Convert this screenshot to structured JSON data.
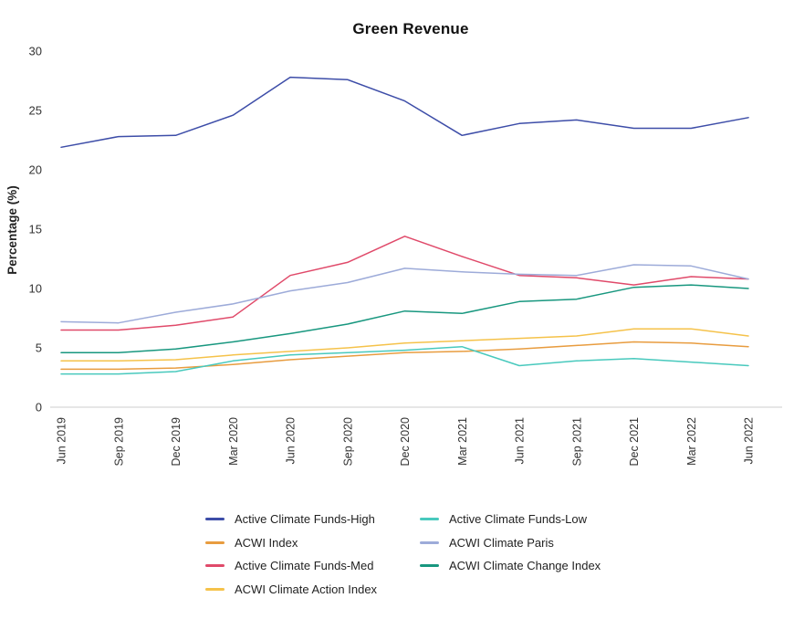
{
  "title": "Green Revenue",
  "y_axis": {
    "label": "Percentage (%)",
    "ticks": [
      0,
      5,
      10,
      15,
      20,
      25,
      30
    ]
  },
  "chart_data": {
    "type": "line",
    "title": "Green Revenue",
    "xlabel": "",
    "ylabel": "Percentage (%)",
    "ylim": [
      0,
      30
    ],
    "grid": false,
    "legend_position": "bottom",
    "categories": [
      "Jun 2019",
      "Sep 2019",
      "Dec 2019",
      "Mar 2020",
      "Jun 2020",
      "Sep 2020",
      "Dec 2020",
      "Mar 2021",
      "Jun 2021",
      "Sep 2021",
      "Dec 2021",
      "Mar 2022",
      "Jun 2022"
    ],
    "series": [
      {
        "name": "Active Climate Funds-High",
        "color": "#3d4da8",
        "values": [
          21.9,
          22.8,
          22.9,
          24.6,
          27.8,
          27.6,
          25.8,
          22.9,
          23.9,
          24.2,
          23.5,
          23.5,
          24.4
        ]
      },
      {
        "name": "ACWI Index",
        "color": "#e89c3f",
        "values": [
          3.2,
          3.2,
          3.3,
          3.6,
          4.0,
          4.3,
          4.6,
          4.7,
          4.9,
          5.2,
          5.5,
          5.4,
          5.1
        ]
      },
      {
        "name": "Active Climate Funds-Med",
        "color": "#e04a6a",
        "values": [
          6.5,
          6.5,
          6.9,
          7.6,
          11.1,
          12.2,
          14.4,
          12.7,
          11.1,
          10.9,
          10.3,
          11.0,
          10.8
        ]
      },
      {
        "name": "ACWI Climate Action Index",
        "color": "#f5c24a",
        "values": [
          3.9,
          3.9,
          4.0,
          4.4,
          4.7,
          5.0,
          5.4,
          5.6,
          5.8,
          6.0,
          6.6,
          6.6,
          6.0
        ]
      },
      {
        "name": "Active Climate Funds-Low",
        "color": "#48c9bd",
        "values": [
          2.8,
          2.8,
          3.0,
          3.9,
          4.4,
          4.6,
          4.8,
          5.1,
          3.5,
          3.9,
          4.1,
          3.8,
          3.5
        ]
      },
      {
        "name": "ACWI Climate Paris",
        "color": "#9dabd9",
        "values": [
          7.2,
          7.1,
          8.0,
          8.7,
          9.8,
          10.5,
          11.7,
          11.4,
          11.2,
          11.1,
          12.0,
          11.9,
          10.8
        ]
      },
      {
        "name": "ACWI Climate Change Index",
        "color": "#18977f",
        "values": [
          4.6,
          4.6,
          4.9,
          5.5,
          6.2,
          7.0,
          8.1,
          7.9,
          8.9,
          9.1,
          10.1,
          10.3,
          10.0
        ]
      }
    ]
  },
  "legend": {
    "columns": [
      [
        "Active Climate Funds-High",
        "ACWI Index",
        "Active Climate Funds-Med",
        "ACWI Climate Action Index"
      ],
      [
        "Active Climate Funds-Low",
        "ACWI Climate Paris",
        "ACWI Climate Change Index"
      ]
    ]
  },
  "colors": {
    "axis_line": "#cccccc",
    "tick_text": "#333333",
    "title_text": "#111111"
  }
}
